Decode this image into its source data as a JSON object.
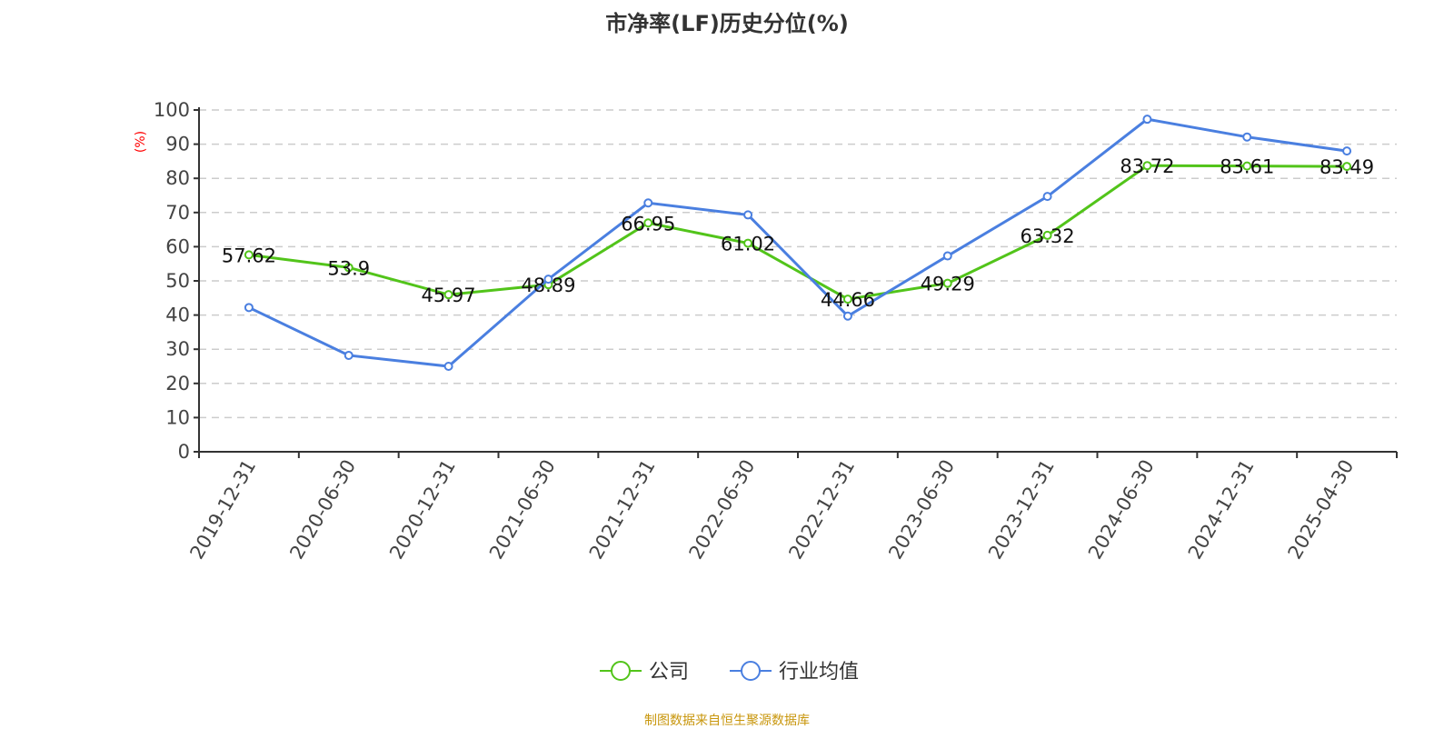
{
  "title": "市净率(LF)历史分位(%)",
  "footer": "制图数据来自恒生聚源数据库",
  "chart_data": {
    "type": "line",
    "title": "市净率(LF)历史分位(%)",
    "ylabel": "(%)",
    "ylim": [
      0,
      100
    ],
    "yticks": [
      0,
      10,
      20,
      30,
      40,
      50,
      60,
      70,
      80,
      90,
      100
    ],
    "grid": true,
    "legend_position": "bottom",
    "categories": [
      "2019-12-31",
      "2020-06-30",
      "2020-12-31",
      "2021-06-30",
      "2021-12-31",
      "2022-06-30",
      "2022-12-31",
      "2023-06-30",
      "2023-12-31",
      "2024-06-30",
      "2024-12-31",
      "2025-04-30"
    ],
    "series": [
      {
        "name": "公司",
        "color": "#52c41a",
        "labels": true,
        "values": [
          57.62,
          53.9,
          45.97,
          48.89,
          66.95,
          61.02,
          44.66,
          49.29,
          63.32,
          83.72,
          83.61,
          83.49
        ]
      },
      {
        "name": "行业均值",
        "color": "#4a7fe0",
        "labels": false,
        "values": [
          42.2,
          28.2,
          25.0,
          50.5,
          72.8,
          69.3,
          39.7,
          57.3,
          74.7,
          97.3,
          92.1,
          88.0
        ]
      }
    ]
  }
}
